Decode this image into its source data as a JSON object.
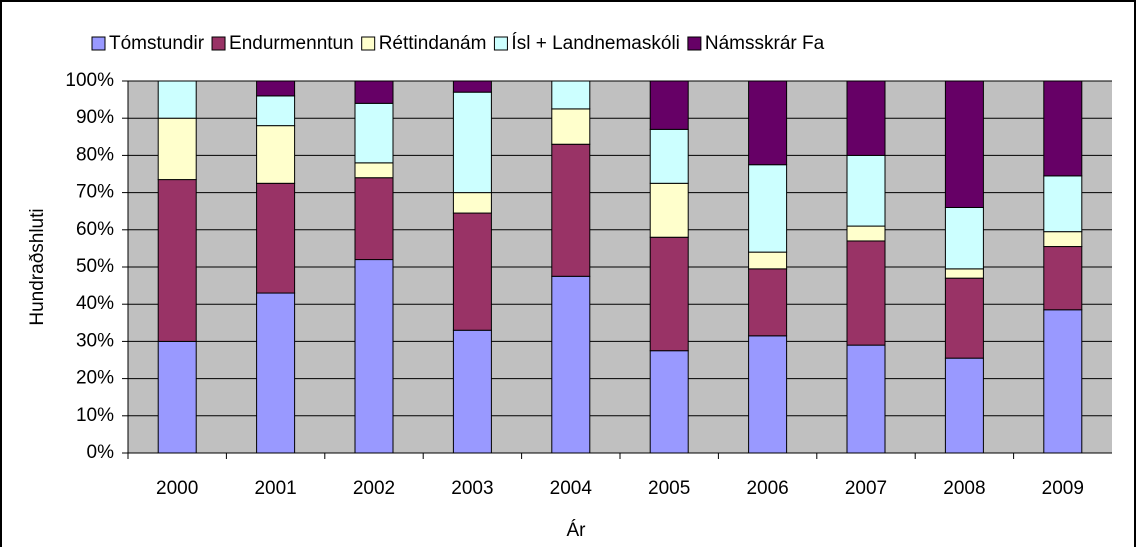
{
  "chart_data": {
    "type": "stacked_bar",
    "categories": [
      "2000",
      "2001",
      "2002",
      "2003",
      "2004",
      "2005",
      "2006",
      "2007",
      "2008",
      "2009"
    ],
    "series": [
      {
        "name": "Tómstundir",
        "color": "#9999ff",
        "values": [
          30,
          43,
          52,
          33,
          47.5,
          27.5,
          31.5,
          29,
          25.5,
          38.5
        ]
      },
      {
        "name": "Endurmenntun",
        "color": "#993366",
        "values": [
          43.5,
          29.5,
          22,
          31.5,
          35.5,
          30.5,
          18,
          28,
          21.5,
          17
        ]
      },
      {
        "name": "Réttindanám",
        "color": "#ffffcc",
        "values": [
          16.5,
          15.5,
          4,
          5.5,
          9.5,
          14.5,
          4.5,
          4,
          2.5,
          4
        ]
      },
      {
        "name": "Ísl + Landnemaskóli",
        "color": "#ccffff",
        "values": [
          10,
          8,
          16,
          27,
          7.5,
          14.5,
          23.5,
          19,
          16.5,
          15
        ]
      },
      {
        "name": "Námsskrár Fa",
        "color": "#660066",
        "values": [
          0,
          4,
          6,
          3,
          0,
          13,
          22.5,
          20,
          34,
          25.5
        ]
      }
    ],
    "ylim": [
      0,
      100
    ],
    "yticks": [
      {
        "value": 0,
        "label": "0%"
      },
      {
        "value": 10,
        "label": "10%"
      },
      {
        "value": 20,
        "label": "20%"
      },
      {
        "value": 30,
        "label": "30%"
      },
      {
        "value": 40,
        "label": "40%"
      },
      {
        "value": 50,
        "label": "50%"
      },
      {
        "value": 60,
        "label": "60%"
      },
      {
        "value": 70,
        "label": "70%"
      },
      {
        "value": 80,
        "label": "80%"
      },
      {
        "value": 90,
        "label": "90%"
      },
      {
        "value": 100,
        "label": "100%"
      }
    ],
    "xlabel": "Ár",
    "ylabel": "Hundraðshluti",
    "grid": true,
    "legend": "top"
  }
}
